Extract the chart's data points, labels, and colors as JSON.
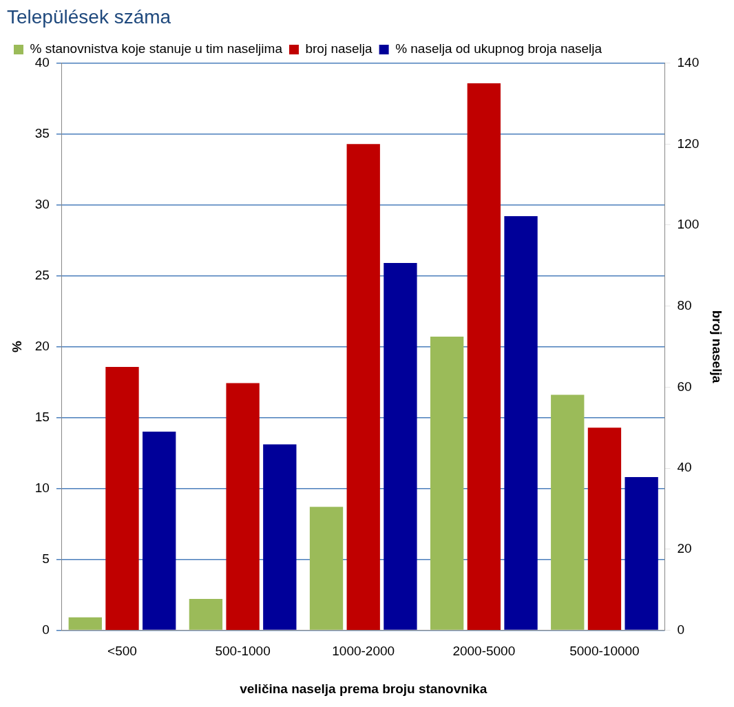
{
  "chart_data": {
    "type": "bar",
    "title": "Települések száma",
    "categories": [
      "<500",
      "500-1000",
      "1000-2000",
      "2000-5000",
      "5000-10000"
    ],
    "series": [
      {
        "name": "% stanovnistva koje stanuje u tim naseljima",
        "color": "#9bbb59",
        "values": [
          0.9,
          2.2,
          8.7,
          20.7,
          16.6
        ]
      },
      {
        "name": "broj naselja",
        "color": "#c00000",
        "axis": "y2",
        "values": [
          65,
          61,
          120,
          135,
          50
        ]
      },
      {
        "name": "% naselja od ukupnog broja naselja",
        "color": "#000099",
        "values": [
          14.0,
          13.1,
          25.9,
          29.2,
          10.8
        ]
      }
    ],
    "xlabel": "veličina naselja prema broju stanovnika",
    "ylabel": "%",
    "y2label": "broj naselja",
    "ylim": [
      0,
      40
    ],
    "yticks": [
      0,
      5,
      10,
      15,
      20,
      25,
      30,
      35,
      40
    ],
    "y2lim": [
      0,
      140
    ],
    "y2ticks": [
      0,
      20,
      40,
      60,
      80,
      100,
      120,
      140
    ],
    "grid": "y",
    "legend": "top"
  }
}
